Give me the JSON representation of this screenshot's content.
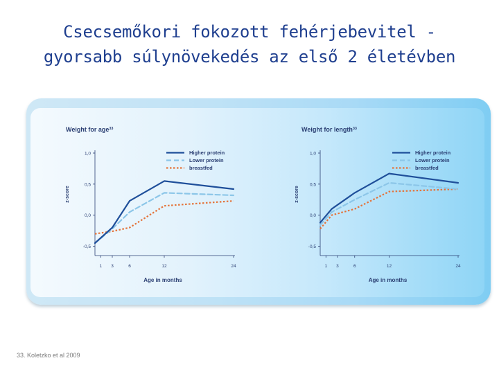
{
  "slide": {
    "title_line1": "Csecsemőkori fokozott fehérjebevitel -",
    "title_line2": "gyorsabb súlynövekedés az első 2 életévben",
    "footnote": "33. Koletzko et al 2009"
  },
  "colors": {
    "title": "#1f3f8f",
    "higher_protein": "#1f4f9a",
    "lower_protein": "#8cc6e8",
    "breastfed": "#e4733a",
    "axis": "#2a3e72"
  },
  "chart_data": [
    {
      "type": "line",
      "title": "Weight for age",
      "title_superscript": "33",
      "xlabel": "Age in months",
      "ylabel": "z-score",
      "x_ticks": [
        1,
        3,
        6,
        12,
        24
      ],
      "y_ticks": [
        "1,0",
        "0,5",
        "0,0",
        "-0,5"
      ],
      "y_tick_values": [
        1.0,
        0.5,
        0.0,
        -0.5
      ],
      "xlim": [
        0,
        24
      ],
      "ylim": [
        -0.55,
        1.0
      ],
      "legend_position": "top-right",
      "series": [
        {
          "name": "Higher protein",
          "style": "solid",
          "x": [
            0,
            3,
            6,
            12,
            24
          ],
          "y": [
            -0.45,
            -0.2,
            0.23,
            0.55,
            0.42
          ]
        },
        {
          "name": "Lower protein",
          "style": "dashed",
          "x": [
            0,
            3,
            6,
            12,
            24
          ],
          "y": [
            -0.45,
            -0.22,
            0.05,
            0.36,
            0.32
          ]
        },
        {
          "name": "breastfed",
          "style": "dotted",
          "x": [
            0,
            3,
            6,
            12,
            24
          ],
          "y": [
            -0.3,
            -0.26,
            -0.2,
            0.15,
            0.23
          ]
        }
      ]
    },
    {
      "type": "line",
      "title": "Weight for length",
      "title_superscript": "33",
      "xlabel": "Age in months",
      "ylabel": "z-score",
      "x_ticks": [
        1,
        3,
        6,
        12,
        24
      ],
      "y_ticks": [
        "1,0",
        "0,5",
        "0,0",
        "-0,5"
      ],
      "y_tick_values": [
        1.0,
        0.5,
        0.0,
        -0.5
      ],
      "xlim": [
        0,
        24
      ],
      "ylim": [
        -0.55,
        1.0
      ],
      "legend_position": "top-right",
      "series": [
        {
          "name": "Higher protein",
          "style": "solid",
          "x": [
            0,
            2,
            6,
            12,
            24
          ],
          "y": [
            -0.12,
            0.1,
            0.36,
            0.67,
            0.52
          ]
        },
        {
          "name": "Lower protein",
          "style": "dashed",
          "x": [
            0,
            2,
            6,
            12,
            24
          ],
          "y": [
            -0.16,
            0.05,
            0.25,
            0.52,
            0.42
          ]
        },
        {
          "name": "breastfed",
          "style": "dotted",
          "x": [
            0,
            2,
            6,
            12,
            24
          ],
          "y": [
            -0.22,
            0.0,
            0.1,
            0.38,
            0.42
          ]
        }
      ]
    }
  ]
}
